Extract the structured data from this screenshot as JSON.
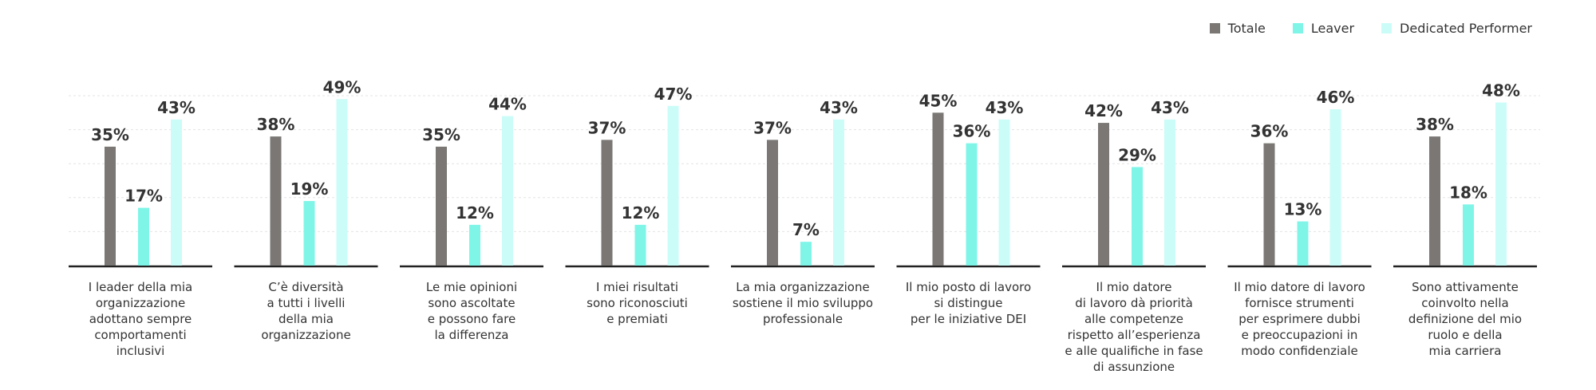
{
  "colors": {
    "totale": "#7a7774",
    "leaver": "#7ff5e8",
    "dedicated": "#cbfcf8",
    "axis": "#222222",
    "grid": "#e4e4e4"
  },
  "chart_data": {
    "type": "bar",
    "ylim": [
      0,
      50
    ],
    "grid": true,
    "legend_position": "top-right",
    "value_suffix": "%",
    "series": [
      {
        "name": "Totale",
        "values": [
          35,
          38,
          35,
          37,
          37,
          45,
          42,
          36,
          38
        ]
      },
      {
        "name": "Leaver",
        "values": [
          17,
          19,
          12,
          12,
          7,
          36,
          29,
          13,
          18
        ]
      },
      {
        "name": "Dedicated Performer",
        "values": [
          43,
          49,
          44,
          47,
          43,
          43,
          43,
          46,
          48
        ]
      }
    ],
    "categories": [
      "I leader della mia\norganizzazione\nadottano sempre\ncomportamenti\ninclusivi",
      "C’è diversità\na tutti i livelli\ndella mia\norganizzazione",
      "Le mie opinioni\nsono ascoltate\ne possono fare\nla differenza",
      "I miei risultati\nsono riconosciuti\ne premiati",
      "La mia organizzazione\nsostiene il mio sviluppo\nprofessionale",
      "Il mio posto di lavoro\nsi distingue\nper le iniziative DEI",
      "Il mio datore\ndi lavoro dà priorità\nalle competenze\nrispetto all’esperienza\ne alle qualifiche in fase\ndi assunzione",
      "Il mio datore di lavoro\nfornisce strumenti\nper esprimere dubbi\ne preoccupazioni in\nmodo confidenziale",
      "Sono attivamente\ncoinvolto nella\ndefinizione del mio\nruolo e della\nmia carriera"
    ]
  }
}
